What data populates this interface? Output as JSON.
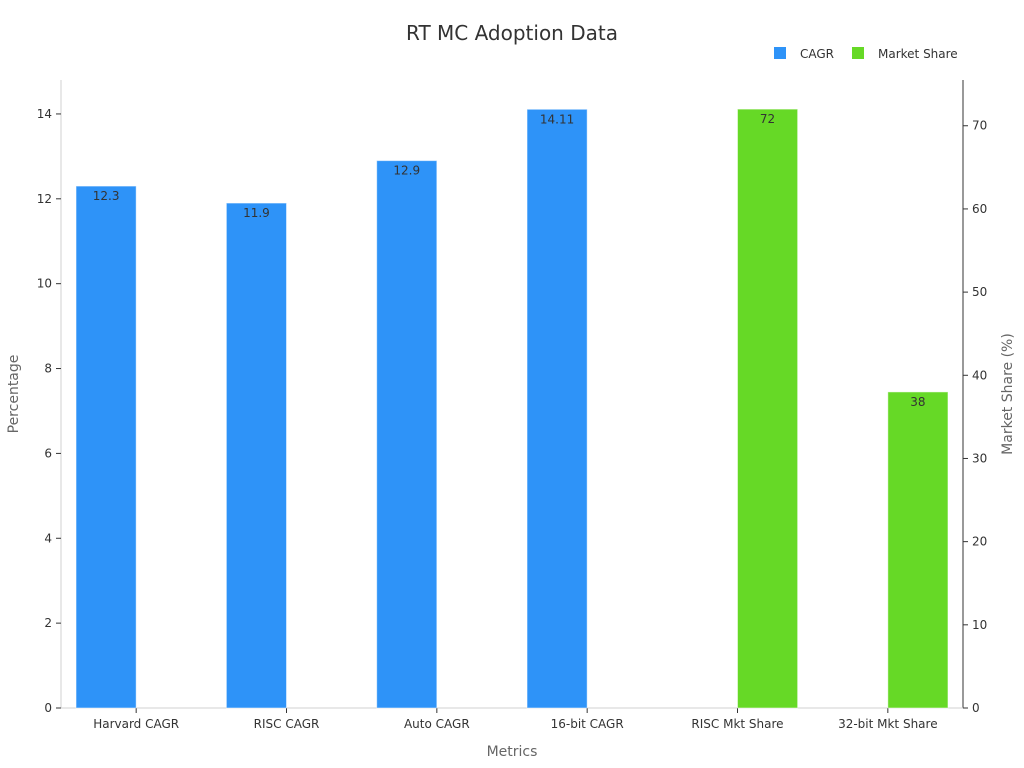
{
  "chart_data": {
    "type": "bar",
    "title": "RT MC Adoption Data",
    "xlabel": "Metrics",
    "ylabel": "Percentage",
    "y2label": "Market Share (%)",
    "categories": [
      "Harvard CAGR",
      "RISC CAGR",
      "Auto CAGR",
      "16-bit CAGR",
      "RISC Mkt Share",
      "32-bit Mkt Share"
    ],
    "ylim": [
      0,
      14.8
    ],
    "y2lim": [
      0,
      75.5
    ],
    "yticks": [
      0,
      2,
      4,
      6,
      8,
      10,
      12,
      14
    ],
    "y2ticks": [
      0,
      10,
      20,
      30,
      40,
      50,
      60,
      70
    ],
    "legend_position": "top-right",
    "grid": false,
    "series": [
      {
        "name": "CAGR",
        "color": "#2e93f8",
        "axis": "left",
        "slot": "left",
        "values": [
          12.3,
          11.9,
          12.9,
          14.11,
          null,
          null
        ],
        "labels": [
          "12.3",
          "11.9",
          "12.9",
          "14.11",
          null,
          null
        ]
      },
      {
        "name": "Market Share",
        "color": "#66d926",
        "axis": "right",
        "slot": "right",
        "values": [
          null,
          null,
          null,
          null,
          72,
          38
        ],
        "labels": [
          null,
          null,
          null,
          null,
          "72",
          "38"
        ]
      }
    ]
  }
}
